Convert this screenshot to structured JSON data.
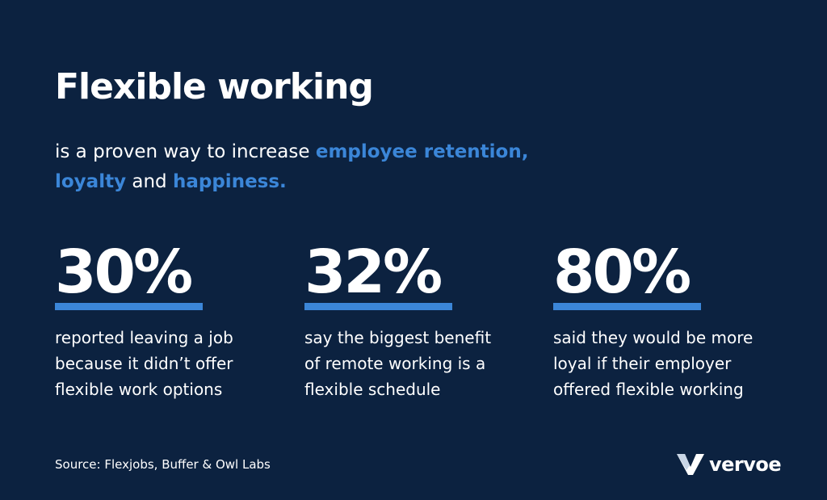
{
  "title": "Flexible working",
  "subtitle": {
    "prefix": "is a proven way to increase ",
    "highlight1": "employee retention,",
    "line2_highlight": "loyalty",
    "connector": " and ",
    "highlight3": "happiness."
  },
  "stats": [
    {
      "value": "30%",
      "lines": [
        "reported leaving a job",
        "because it didn’t offer",
        "flexible work options"
      ]
    },
    {
      "value": "32%",
      "lines": [
        "say the biggest benefit",
        "of remote working is a",
        "flexible schedule"
      ]
    },
    {
      "value": "80%",
      "lines": [
        "said they would be more",
        "loyal if their employer",
        "offered flexible working"
      ]
    }
  ],
  "source": "Source: Flexjobs, Buffer & Owl Labs",
  "brand": {
    "name": "vervoe",
    "icon": "vervoe-logo-mark"
  },
  "colors": {
    "background": "#0c2240",
    "accent": "#3b86d8",
    "text": "#ffffff"
  }
}
